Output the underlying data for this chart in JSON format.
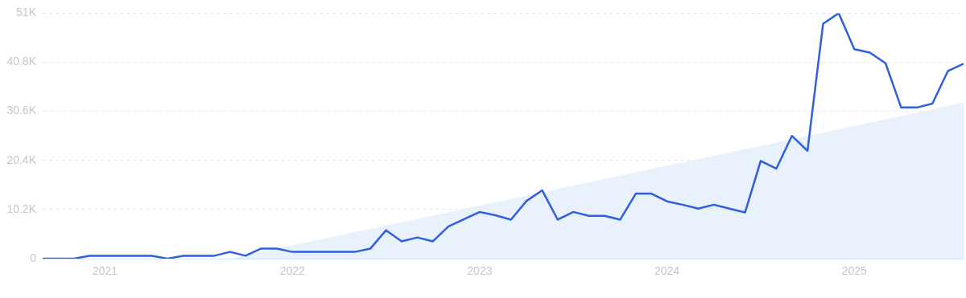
{
  "chart_data": {
    "type": "line",
    "x": [
      "2020-09",
      "2020-10",
      "2020-11",
      "2020-12",
      "2021-01",
      "2021-02",
      "2021-03",
      "2021-04",
      "2021-05",
      "2021-06",
      "2021-07",
      "2021-08",
      "2021-09",
      "2021-10",
      "2021-11",
      "2021-12",
      "2022-01",
      "2022-02",
      "2022-03",
      "2022-04",
      "2022-05",
      "2022-06",
      "2022-07",
      "2022-08",
      "2022-09",
      "2022-10",
      "2022-11",
      "2022-12",
      "2023-01",
      "2023-02",
      "2023-03",
      "2023-04",
      "2023-05",
      "2023-06",
      "2023-07",
      "2023-08",
      "2023-09",
      "2023-10",
      "2023-11",
      "2023-12",
      "2024-01",
      "2024-02",
      "2024-03",
      "2024-04",
      "2024-05",
      "2024-06",
      "2024-07",
      "2024-08",
      "2024-09",
      "2024-10",
      "2024-11",
      "2024-12",
      "2025-01",
      "2025-02",
      "2025-03",
      "2025-04",
      "2025-05",
      "2025-06",
      "2025-07",
      "2025-08"
    ],
    "series": [
      {
        "type": "area",
        "color": "#e4eefc",
        "x": [
          "2021-09",
          "2025-08"
        ],
        "values": [
          0,
          32400
        ]
      },
      {
        "type": "line",
        "color": "#2f5fe0",
        "values": [
          0,
          0,
          0,
          600,
          600,
          600,
          600,
          600,
          0,
          600,
          600,
          600,
          1400,
          600,
          2100,
          2100,
          1400,
          1400,
          1400,
          1400,
          1400,
          2100,
          5900,
          3600,
          4400,
          3600,
          6700,
          8200,
          9700,
          9000,
          8100,
          12000,
          14200,
          8100,
          9700,
          8900,
          8900,
          8100,
          13500,
          13500,
          11900,
          11200,
          10400,
          11200,
          10400,
          9600,
          20300,
          18700,
          25500,
          22400,
          48800,
          51000,
          43500,
          42800,
          40600,
          31400,
          31400,
          32200,
          39000,
          40500
        ]
      }
    ],
    "xlim": [
      "2020-09",
      "2025-08"
    ],
    "xticks": [
      "2021",
      "2022",
      "2023",
      "2024",
      "2025"
    ],
    "ylim": [
      0,
      51000
    ],
    "yticks": [
      0,
      {
        "value": 10200,
        "label": "10.2K"
      },
      {
        "value": 20400,
        "label": "20.4K"
      },
      {
        "value": 30600,
        "label": "30.6K"
      },
      {
        "value": 40800,
        "label": "40.8K"
      },
      {
        "value": 51000,
        "label": "51K"
      }
    ],
    "grid": "y",
    "legend": false,
    "marker": "none",
    "line_style": "solid"
  }
}
